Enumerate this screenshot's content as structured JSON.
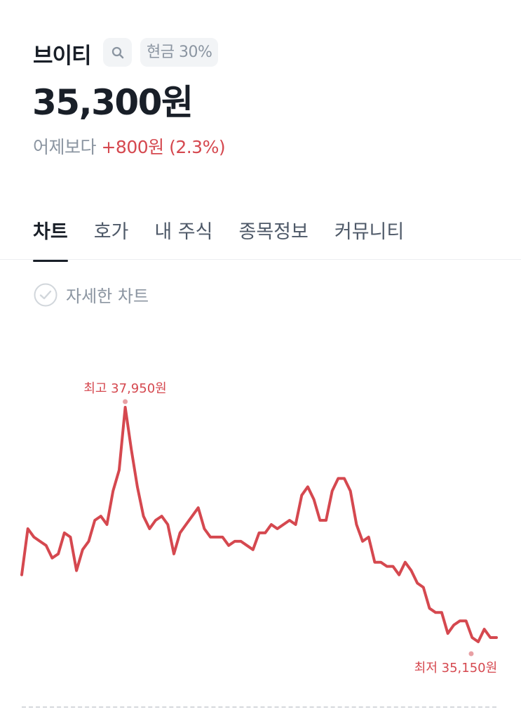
{
  "stock": {
    "name": "브이티",
    "badge": "현금 30%",
    "price": "35,300원",
    "change_label": "어제보다",
    "change_value": "+800원 (2.3%)"
  },
  "tabs": [
    {
      "label": "차트",
      "active": true
    },
    {
      "label": "호가"
    },
    {
      "label": "내 주식"
    },
    {
      "label": "종목정보"
    },
    {
      "label": "커뮤니티"
    }
  ],
  "detail_chart": {
    "label": "자세한 차트",
    "icon": "check-circle-icon"
  },
  "colors": {
    "up": "#d5484f",
    "text": "#191f28",
    "muted": "#8b95a1"
  },
  "chart_data": {
    "type": "line",
    "high_label": "최고 37,950원",
    "low_label": "최저 35,150원",
    "high": 37950,
    "low": 35150,
    "values": [
      35950,
      36500,
      36400,
      36350,
      36300,
      36150,
      36200,
      36450,
      36400,
      36000,
      36250,
      36350,
      36600,
      36650,
      36550,
      36950,
      37200,
      37950,
      37450,
      37000,
      36650,
      36500,
      36600,
      36650,
      36550,
      36200,
      36450,
      36550,
      36650,
      36750,
      36500,
      36400,
      36400,
      36400,
      36300,
      36350,
      36350,
      36300,
      36250,
      36450,
      36450,
      36550,
      36500,
      36550,
      36600,
      36550,
      36900,
      37000,
      36850,
      36600,
      36600,
      36950,
      37100,
      37100,
      36950,
      36550,
      36350,
      36400,
      36100,
      36100,
      36050,
      36050,
      35950,
      36100,
      36000,
      35850,
      35800,
      35550,
      35500,
      35500,
      35250,
      35350,
      35400,
      35400,
      35200,
      35150,
      35300,
      35200,
      35200
    ]
  }
}
